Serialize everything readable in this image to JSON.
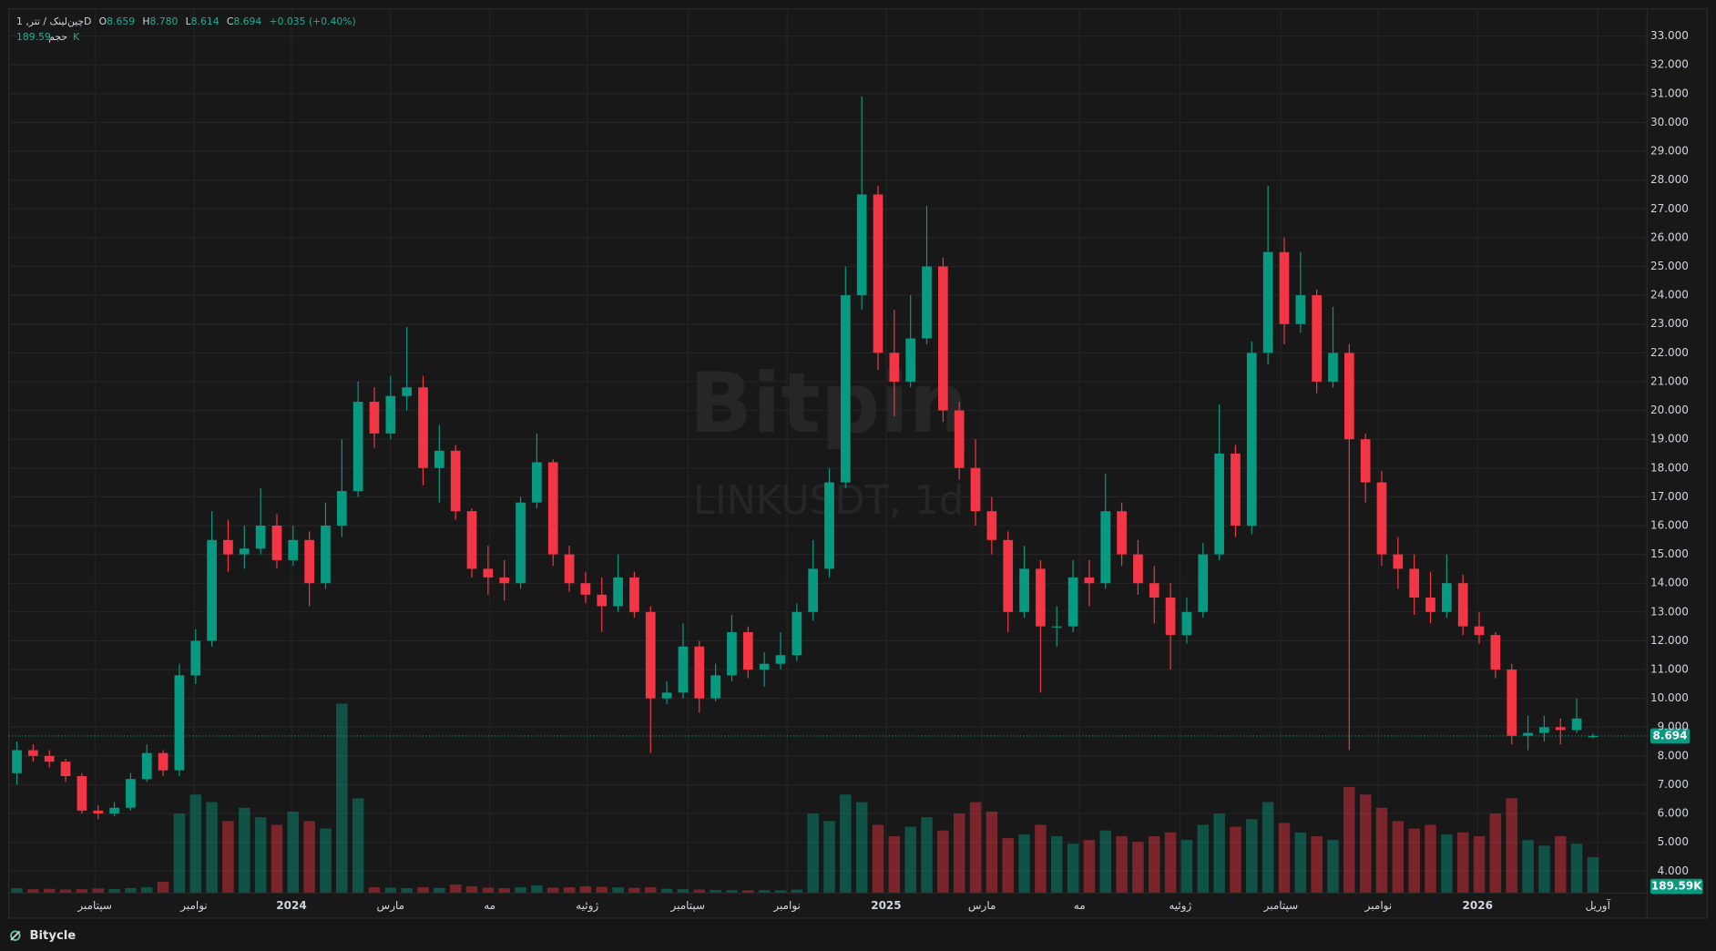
{
  "chart_data": {
    "type": "candlestick",
    "header": {
      "symbol": "چین‌لینک / تتر, 1D",
      "o_prefix": "O",
      "o": "8.659",
      "h_prefix": "H",
      "h": "8.780",
      "l_prefix": "L",
      "l": "8.614",
      "c_prefix": "C",
      "c": "8.694",
      "change": "+0.035 (+0.40%)",
      "volume_title": "حجم",
      "volume": "189.59K"
    },
    "watermark": "Bitpin",
    "watermark_sub": "LINKUSDT, 1d",
    "brand": "Bitycle",
    "last_price_label": "8.694",
    "last_volume_label": "189.59K",
    "up_color": "#089981",
    "down_color": "#f23645",
    "grid": true,
    "open": [
      7.4,
      8.2,
      8.0,
      7.8,
      7.3,
      6.1,
      6.0,
      6.2,
      7.2,
      8.1,
      7.5,
      10.8,
      12.0,
      15.5,
      15.0,
      15.2,
      16.0,
      14.8,
      15.5,
      14.0,
      16.0,
      17.2,
      20.3,
      19.2,
      20.5,
      20.8,
      18.0,
      18.6,
      16.5,
      14.5,
      14.2,
      14.0,
      16.8,
      18.2,
      15.0,
      14.0,
      13.6,
      13.2,
      14.2,
      13.0,
      10.0,
      10.2,
      11.8,
      10.0,
      10.8,
      12.3,
      11.0,
      11.2,
      11.5,
      13.0,
      14.5,
      17.5,
      24.0,
      27.5,
      22.0,
      21.0,
      22.5,
      25.0,
      20.0,
      18.0,
      16.5,
      15.5,
      13.0,
      14.5,
      12.5,
      12.5,
      14.2,
      14.0,
      16.5,
      15.0,
      14.0,
      13.5,
      12.2,
      13.0,
      15.0,
      18.5,
      16.0,
      22.0,
      25.5,
      23.0,
      24.0,
      21.0,
      22.0,
      19.0,
      17.5,
      15.0,
      14.5,
      13.5,
      13.0,
      14.0,
      12.5,
      12.2,
      11.0,
      8.7,
      8.8,
      9.0,
      8.9,
      8.659
    ],
    "high": [
      8.5,
      8.4,
      8.2,
      7.9,
      7.4,
      6.3,
      6.4,
      7.4,
      8.4,
      8.2,
      11.2,
      12.4,
      16.5,
      16.2,
      16.0,
      17.3,
      16.4,
      16.0,
      15.8,
      16.8,
      19.0,
      21.0,
      20.8,
      21.2,
      22.9,
      21.2,
      19.5,
      18.8,
      16.6,
      15.3,
      14.8,
      17.0,
      19.2,
      18.3,
      15.3,
      14.4,
      14.2,
      15.0,
      14.4,
      13.2,
      10.6,
      12.6,
      12.0,
      11.2,
      12.9,
      12.5,
      11.6,
      12.3,
      13.3,
      15.5,
      18.0,
      25.0,
      30.9,
      27.8,
      23.5,
      24.0,
      27.1,
      25.3,
      20.3,
      19.0,
      17.0,
      15.8,
      15.3,
      14.8,
      13.2,
      14.8,
      14.8,
      17.8,
      16.8,
      15.5,
      14.6,
      14.0,
      13.5,
      15.4,
      20.2,
      18.8,
      22.4,
      27.8,
      26.0,
      25.5,
      24.2,
      23.6,
      22.3,
      19.2,
      17.9,
      15.6,
      15.0,
      14.4,
      15.0,
      14.3,
      13.0,
      12.3,
      11.2,
      9.4,
      9.4,
      9.3,
      10.0,
      8.78
    ],
    "low": [
      7.0,
      7.8,
      7.6,
      7.1,
      6.0,
      5.8,
      5.9,
      6.1,
      7.1,
      7.3,
      7.3,
      10.5,
      11.8,
      14.4,
      14.5,
      15.0,
      14.5,
      14.6,
      13.2,
      13.8,
      15.6,
      17.0,
      18.7,
      19.0,
      20.0,
      17.4,
      16.8,
      16.2,
      14.2,
      13.6,
      13.4,
      13.8,
      16.6,
      14.6,
      13.7,
      13.3,
      12.3,
      13.0,
      12.8,
      8.1,
      9.8,
      10.0,
      9.5,
      9.9,
      10.6,
      10.7,
      10.4,
      11.0,
      11.3,
      12.7,
      14.2,
      17.3,
      23.5,
      21.4,
      19.8,
      20.8,
      22.3,
      19.6,
      17.6,
      16.0,
      15.0,
      12.3,
      12.8,
      10.2,
      11.8,
      12.3,
      13.2,
      13.8,
      14.6,
      13.6,
      12.6,
      11.0,
      11.9,
      12.8,
      14.8,
      15.6,
      15.7,
      21.6,
      22.3,
      22.7,
      20.6,
      20.8,
      8.2,
      16.8,
      14.6,
      13.8,
      12.9,
      12.6,
      12.8,
      12.2,
      11.9,
      10.7,
      8.4,
      8.2,
      8.5,
      8.4,
      8.8,
      8.614
    ],
    "close": [
      8.2,
      8.0,
      7.8,
      7.3,
      6.1,
      6.0,
      6.2,
      7.2,
      8.1,
      7.5,
      10.8,
      12.0,
      15.5,
      15.0,
      15.2,
      16.0,
      14.8,
      15.5,
      14.0,
      16.0,
      17.2,
      20.3,
      19.2,
      20.5,
      20.8,
      18.0,
      18.6,
      16.5,
      14.5,
      14.2,
      14.0,
      16.8,
      18.2,
      15.0,
      14.0,
      13.6,
      13.2,
      14.2,
      13.0,
      10.0,
      10.2,
      11.8,
      10.0,
      10.8,
      12.3,
      11.0,
      11.2,
      11.5,
      13.0,
      14.5,
      17.5,
      24.0,
      27.5,
      22.0,
      21.0,
      22.5,
      25.0,
      20.0,
      18.0,
      16.5,
      15.5,
      13.0,
      14.5,
      12.5,
      12.5,
      14.2,
      14.0,
      16.5,
      15.0,
      14.0,
      13.5,
      12.2,
      13.0,
      15.0,
      18.5,
      16.0,
      22.0,
      25.5,
      23.0,
      24.0,
      21.0,
      22.0,
      19.0,
      17.5,
      15.0,
      14.5,
      13.5,
      13.0,
      14.0,
      12.5,
      12.2,
      11.0,
      8.7,
      8.8,
      9.0,
      8.9,
      9.3,
      8.694
    ],
    "volume": [
      25000,
      20000,
      22000,
      18000,
      20000,
      24000,
      21000,
      26000,
      30000,
      60000,
      420000,
      520000,
      480000,
      380000,
      450000,
      400000,
      360000,
      430000,
      380000,
      340000,
      1000000,
      500000,
      30000,
      28000,
      25000,
      30000,
      27000,
      45000,
      35000,
      28000,
      25000,
      30000,
      40000,
      28000,
      30000,
      35000,
      32000,
      30000,
      27000,
      30000,
      22000,
      20000,
      18000,
      16000,
      15000,
      14000,
      15000,
      14000,
      18000,
      420000,
      380000,
      520000,
      480000,
      360000,
      300000,
      350000,
      400000,
      330000,
      420000,
      480000,
      430000,
      290000,
      310000,
      360000,
      300000,
      260000,
      280000,
      330000,
      300000,
      270000,
      300000,
      320000,
      280000,
      360000,
      420000,
      350000,
      390000,
      480000,
      370000,
      320000,
      300000,
      280000,
      560000,
      520000,
      450000,
      380000,
      340000,
      360000,
      310000,
      320000,
      300000,
      420000,
      500000,
      280000,
      250000,
      300000,
      260000,
      189590
    ],
    "xlim": [
      -0.5,
      97.5
    ],
    "xticks": [
      {
        "value": 4.8,
        "label": "سپتامبر"
      },
      {
        "value": 10.9,
        "label": "نوامبر"
      },
      {
        "value": 16.9,
        "label": "2024"
      },
      {
        "value": 23.0,
        "label": "مارس"
      },
      {
        "value": 29.1,
        "label": "مه"
      },
      {
        "value": 35.1,
        "label": "ژوئیه"
      },
      {
        "value": 41.3,
        "label": "سپتامبر"
      },
      {
        "value": 47.4,
        "label": "نوامبر"
      },
      {
        "value": 53.5,
        "label": "2025"
      },
      {
        "value": 59.4,
        "label": "مارس"
      },
      {
        "value": 65.4,
        "label": "مه"
      },
      {
        "value": 71.6,
        "label": "ژوئیه"
      },
      {
        "value": 77.8,
        "label": "سپتامبر"
      },
      {
        "value": 83.8,
        "label": "نوامبر"
      },
      {
        "value": 89.9,
        "label": "2026"
      },
      {
        "value": 97.3,
        "label": "آوریل"
      }
    ],
    "ylim": [
      3.24,
      33.95
    ],
    "yticks": [
      {
        "value": 4,
        "label": "4.000"
      },
      {
        "value": 5,
        "label": "5.000"
      },
      {
        "value": 6,
        "label": "6.000"
      },
      {
        "value": 7,
        "label": "7.000"
      },
      {
        "value": 8,
        "label": "8.000"
      },
      {
        "value": 9,
        "label": "9.000"
      },
      {
        "value": 10,
        "label": "10.000"
      },
      {
        "value": 11,
        "label": "11.000"
      },
      {
        "value": 12,
        "label": "12.000"
      },
      {
        "value": 13,
        "label": "13.000"
      },
      {
        "value": 14,
        "label": "14.000"
      },
      {
        "value": 15,
        "label": "15.000"
      },
      {
        "value": 16,
        "label": "16.000"
      },
      {
        "value": 17,
        "label": "17.000"
      },
      {
        "value": 18,
        "label": "18.000"
      },
      {
        "value": 19,
        "label": "19.000"
      },
      {
        "value": 20,
        "label": "20.000"
      },
      {
        "value": 21,
        "label": "21.000"
      },
      {
        "value": 22,
        "label": "22.000"
      },
      {
        "value": 23,
        "label": "23.000"
      },
      {
        "value": 24,
        "label": "24.000"
      },
      {
        "value": 25,
        "label": "25.000"
      },
      {
        "value": 26,
        "label": "26.000"
      },
      {
        "value": 27,
        "label": "27.000"
      },
      {
        "value": 28,
        "label": "28.000"
      },
      {
        "value": 29,
        "label": "29.000"
      },
      {
        "value": 30,
        "label": "30.000"
      },
      {
        "value": 31,
        "label": "31.000"
      },
      {
        "value": 32,
        "label": "32.000"
      },
      {
        "value": 33,
        "label": "33.000"
      }
    ]
  }
}
